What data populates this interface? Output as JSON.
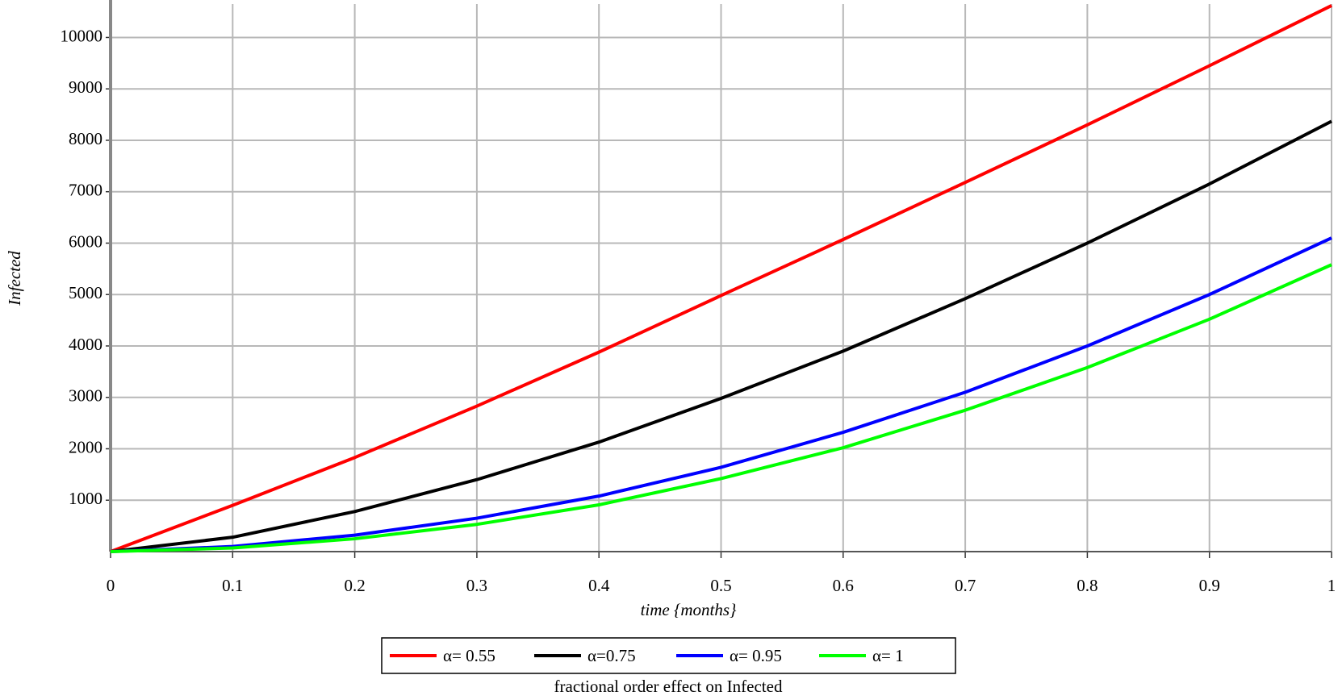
{
  "chart_data": {
    "type": "line",
    "x_label": "time {months}",
    "y_label": "Infected",
    "caption": "fractional order effect on Infected",
    "x": [
      0,
      0.1,
      0.2,
      0.3,
      0.4,
      0.5,
      0.6,
      0.7,
      0.8,
      0.9,
      1
    ],
    "series": [
      {
        "name": "α= 0.55",
        "color": "#ff0000",
        "values": [
          0,
          900,
          1830,
          2830,
          3880,
          4980,
          6070,
          7180,
          8300,
          9450,
          10620
        ]
      },
      {
        "name": "α=0.75",
        "color": "#000000",
        "values": [
          0,
          280,
          780,
          1400,
          2130,
          2980,
          3900,
          4920,
          6000,
          7150,
          8370
        ]
      },
      {
        "name": "α= 0.95",
        "color": "#0000ff",
        "values": [
          0,
          100,
          320,
          650,
          1080,
          1640,
          2320,
          3100,
          4000,
          5000,
          6100
        ]
      },
      {
        "name": "α= 1",
        "color": "#00ff00",
        "values": [
          0,
          70,
          250,
          530,
          910,
          1420,
          2020,
          2750,
          3580,
          4520,
          5580
        ]
      }
    ],
    "xlim": [
      0,
      1
    ],
    "xticks": [
      0,
      0.1,
      0.2,
      0.3,
      0.4,
      0.5,
      0.6,
      0.7,
      0.8,
      0.9,
      1
    ],
    "ylim": [
      0,
      10650
    ],
    "yticks": [
      1000,
      2000,
      3000,
      4000,
      5000,
      6000,
      7000,
      8000,
      9000,
      10000
    ],
    "grid": true,
    "legend_position": "bottom"
  }
}
